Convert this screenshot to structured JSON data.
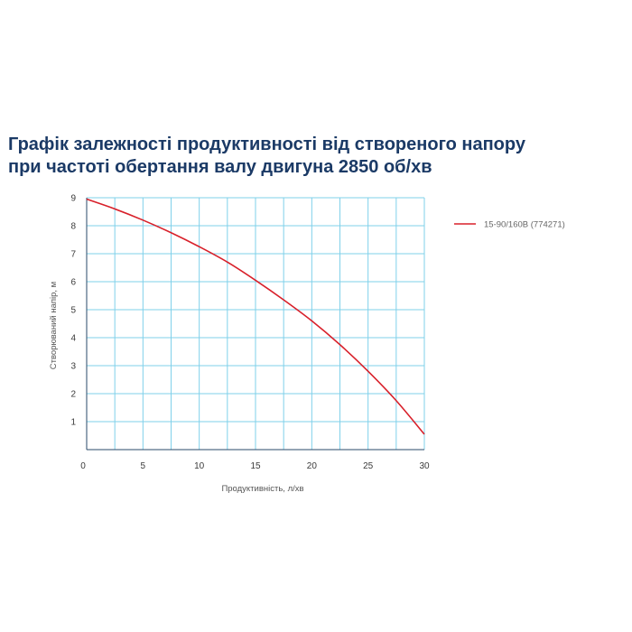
{
  "title": {
    "line1": "Графік залежності продуктивності від створеного напору",
    "line2": "при частоті обертання валу двигуна 2850 об/хв"
  },
  "colors": {
    "title": "#1b3a66",
    "grid": "#7fd0ea",
    "axis": "#2a4a6a",
    "series": "#d8202a"
  },
  "chart_data": {
    "type": "line",
    "title": "Графік залежності продуктивності від створеного напору при частоті обертання валу двигуна 2850 об/хв",
    "xlabel": "Продуктивність, л/хв",
    "ylabel": "Створюваний напір, м",
    "xlim": [
      0,
      30
    ],
    "ylim": [
      0,
      9
    ],
    "x_ticks": [
      0,
      5,
      10,
      15,
      20,
      25,
      30
    ],
    "y_ticks": [
      1,
      2,
      3,
      4,
      5,
      6,
      7,
      8,
      9
    ],
    "x_grid_step": 2.5,
    "grid": true,
    "legend_position": "right",
    "series": [
      {
        "name": "15-90/160B (774271)",
        "color": "#d8202a",
        "x": [
          0,
          2.5,
          5,
          7.5,
          10,
          12.5,
          15,
          17.5,
          20,
          22.5,
          25,
          27.5,
          30
        ],
        "y": [
          8.95,
          8.6,
          8.2,
          7.75,
          7.25,
          6.7,
          6.05,
          5.35,
          4.6,
          3.75,
          2.8,
          1.75,
          0.55
        ]
      }
    ]
  }
}
